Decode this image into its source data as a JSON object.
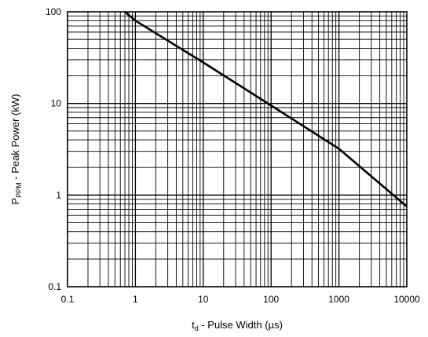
{
  "chart_data": {
    "type": "line",
    "xscale": "log",
    "yscale": "log",
    "xlim": [
      0.1,
      10000
    ],
    "ylim": [
      0.1,
      100
    ],
    "grid": true,
    "x_ticks": [
      "0.1",
      "1",
      "10",
      "100",
      "1000",
      "10000"
    ],
    "y_ticks": [
      "0.1",
      "1",
      "10",
      "100"
    ],
    "xlabel_main": "t",
    "xlabel_sub": "d",
    "xlabel_rest": " - Pulse Width (µs)",
    "ylabel_main": "P",
    "ylabel_sub": "PPM",
    "ylabel_rest": " - Peak Power (kW)",
    "series": [
      {
        "x": [
          0.7,
          1,
          10,
          100,
          1000,
          10000
        ],
        "y": [
          100,
          80,
          28,
          9.5,
          3.2,
          0.75
        ]
      }
    ],
    "line_color": "#000000"
  }
}
